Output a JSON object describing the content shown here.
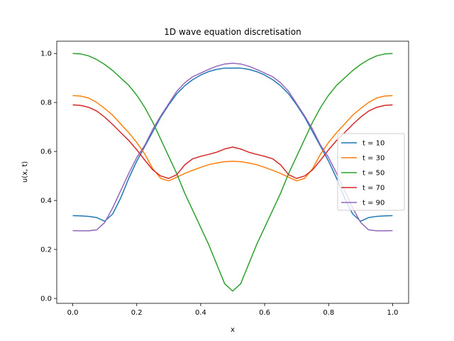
{
  "chart_data": {
    "type": "line",
    "title": "1D wave equation discretisation",
    "xlabel": "x",
    "ylabel": "u(x, t)",
    "xlim": [
      -0.05,
      1.05
    ],
    "ylim": [
      -0.02,
      1.05
    ],
    "xticks": [
      0.0,
      0.2,
      0.4,
      0.6,
      0.8,
      1.0
    ],
    "xtick_labels": [
      "0.0",
      "0.2",
      "0.4",
      "0.6",
      "0.8",
      "1.0"
    ],
    "yticks": [
      0.0,
      0.2,
      0.4,
      0.6,
      0.8,
      1.0
    ],
    "ytick_labels": [
      "0.0",
      "0.2",
      "0.4",
      "0.6",
      "0.8",
      "1.0"
    ],
    "grid": false,
    "legend_position": "center-right",
    "x": [
      0.0,
      0.025,
      0.05,
      0.075,
      0.1,
      0.125,
      0.15,
      0.175,
      0.2,
      0.225,
      0.25,
      0.275,
      0.3,
      0.325,
      0.35,
      0.375,
      0.4,
      0.425,
      0.45,
      0.475,
      0.5,
      0.525,
      0.55,
      0.575,
      0.6,
      0.625,
      0.65,
      0.675,
      0.7,
      0.725,
      0.75,
      0.775,
      0.8,
      0.825,
      0.85,
      0.875,
      0.9,
      0.925,
      0.95,
      0.975,
      1.0
    ],
    "series": [
      {
        "name": "t = 10",
        "color": "#1f77b4",
        "values": [
          0.338,
          0.337,
          0.335,
          0.33,
          0.315,
          0.345,
          0.41,
          0.49,
          0.56,
          0.62,
          0.68,
          0.74,
          0.79,
          0.835,
          0.868,
          0.893,
          0.912,
          0.926,
          0.935,
          0.94,
          0.94,
          0.94,
          0.935,
          0.926,
          0.912,
          0.893,
          0.868,
          0.835,
          0.79,
          0.74,
          0.68,
          0.62,
          0.56,
          0.49,
          0.41,
          0.345,
          0.315,
          0.33,
          0.335,
          0.337,
          0.338
        ]
      },
      {
        "name": "t = 30",
        "color": "#ff7f0e",
        "values": [
          0.828,
          0.826,
          0.818,
          0.8,
          0.775,
          0.748,
          0.712,
          0.677,
          0.637,
          0.59,
          0.53,
          0.49,
          0.48,
          0.495,
          0.51,
          0.523,
          0.535,
          0.546,
          0.553,
          0.558,
          0.56,
          0.558,
          0.553,
          0.546,
          0.535,
          0.523,
          0.51,
          0.495,
          0.48,
          0.49,
          0.53,
          0.59,
          0.637,
          0.677,
          0.712,
          0.748,
          0.775,
          0.8,
          0.818,
          0.826,
          0.828
        ]
      },
      {
        "name": "t = 50",
        "color": "#2ca02c",
        "values": [
          1.0,
          0.998,
          0.99,
          0.975,
          0.955,
          0.93,
          0.9,
          0.87,
          0.83,
          0.78,
          0.72,
          0.65,
          0.58,
          0.51,
          0.43,
          0.36,
          0.29,
          0.22,
          0.14,
          0.06,
          0.03,
          0.06,
          0.14,
          0.22,
          0.29,
          0.36,
          0.43,
          0.51,
          0.58,
          0.65,
          0.72,
          0.78,
          0.83,
          0.87,
          0.9,
          0.93,
          0.955,
          0.975,
          0.99,
          0.998,
          1.0
        ]
      },
      {
        "name": "t = 70",
        "color": "#d62728",
        "values": [
          0.79,
          0.788,
          0.78,
          0.765,
          0.74,
          0.71,
          0.677,
          0.645,
          0.607,
          0.565,
          0.525,
          0.5,
          0.49,
          0.505,
          0.545,
          0.57,
          0.58,
          0.588,
          0.597,
          0.61,
          0.618,
          0.61,
          0.597,
          0.588,
          0.58,
          0.57,
          0.545,
          0.505,
          0.49,
          0.5,
          0.525,
          0.565,
          0.607,
          0.645,
          0.677,
          0.71,
          0.74,
          0.765,
          0.78,
          0.788,
          0.79
        ]
      },
      {
        "name": "t = 90",
        "color": "#9467bd",
        "values": [
          0.277,
          0.276,
          0.276,
          0.28,
          0.31,
          0.37,
          0.44,
          0.51,
          0.575,
          0.625,
          0.69,
          0.745,
          0.795,
          0.845,
          0.88,
          0.905,
          0.92,
          0.935,
          0.948,
          0.957,
          0.96,
          0.957,
          0.948,
          0.935,
          0.92,
          0.905,
          0.88,
          0.845,
          0.795,
          0.745,
          0.69,
          0.625,
          0.575,
          0.51,
          0.44,
          0.37,
          0.31,
          0.28,
          0.276,
          0.276,
          0.277
        ]
      }
    ]
  }
}
